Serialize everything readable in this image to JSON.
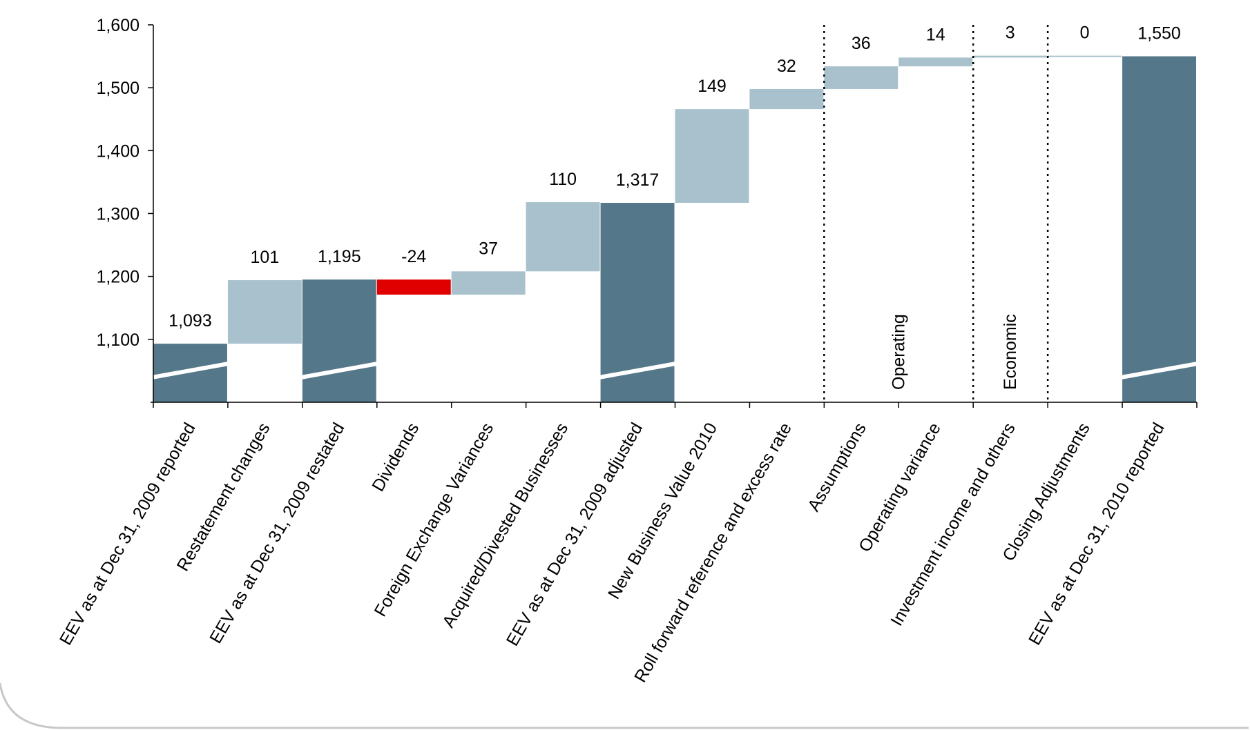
{
  "chart_data": {
    "type": "bar",
    "subtype": "waterfall",
    "title": "",
    "xlabel": "",
    "ylabel": "",
    "ylim": [
      1000,
      1600
    ],
    "axis_break": true,
    "yticks": [
      1100,
      1200,
      1300,
      1400,
      1500,
      1600
    ],
    "ytick_labels": [
      "1,100",
      "1,200",
      "1,300",
      "1,400",
      "1,500",
      "1,600"
    ],
    "grid": false,
    "legend": "none",
    "colors": {
      "total": "#54788A",
      "increase": "#A8C1CC",
      "decrease": "#E00000",
      "break_line": "#FFFFFF",
      "axis": "#000000"
    },
    "bars": [
      {
        "category": "EEV as at Dec 31, 2009 reported",
        "kind": "total",
        "value": 1093,
        "label": "1,093"
      },
      {
        "category": "Restatement changes",
        "kind": "delta",
        "value": 101,
        "label": "101"
      },
      {
        "category": "EEV as at Dec 31, 2009 restated",
        "kind": "total",
        "value": 1195,
        "label": "1,195"
      },
      {
        "category": "Dividends",
        "kind": "delta",
        "value": -24,
        "label": "-24"
      },
      {
        "category": "Foreign Exchange Variances",
        "kind": "delta",
        "value": 37,
        "label": "37"
      },
      {
        "category": "Acquired/Divested Businesses",
        "kind": "delta",
        "value": 110,
        "label": "110"
      },
      {
        "category": "EEV as at Dec 31, 2009 adjusted",
        "kind": "total",
        "value": 1317,
        "label": "1,317"
      },
      {
        "category": "New Business Value 2010",
        "kind": "delta",
        "value": 149,
        "label": "149"
      },
      {
        "category": "Roll forward reference and excess rate",
        "kind": "delta",
        "value": 32,
        "label": "32"
      },
      {
        "category": "Assumptions",
        "kind": "delta",
        "value": 36,
        "label": "36"
      },
      {
        "category": "Operating variance",
        "kind": "delta",
        "value": 14,
        "label": "14"
      },
      {
        "category": "Investment income and others",
        "kind": "delta",
        "value": 3,
        "label": "3"
      },
      {
        "category": "Closing Adjustments",
        "kind": "delta",
        "value": 0,
        "label": "0"
      },
      {
        "category": "EEV as at Dec 31, 2010 reported",
        "kind": "total",
        "value": 1550,
        "label": "1,550"
      }
    ],
    "group_dividers_after_index": [
      8,
      10,
      11
    ],
    "groups": [
      {
        "label": "Operating",
        "from_index": 9,
        "to_index": 10
      },
      {
        "label": "Economic",
        "from_index": 11,
        "to_index": 11
      }
    ]
  }
}
